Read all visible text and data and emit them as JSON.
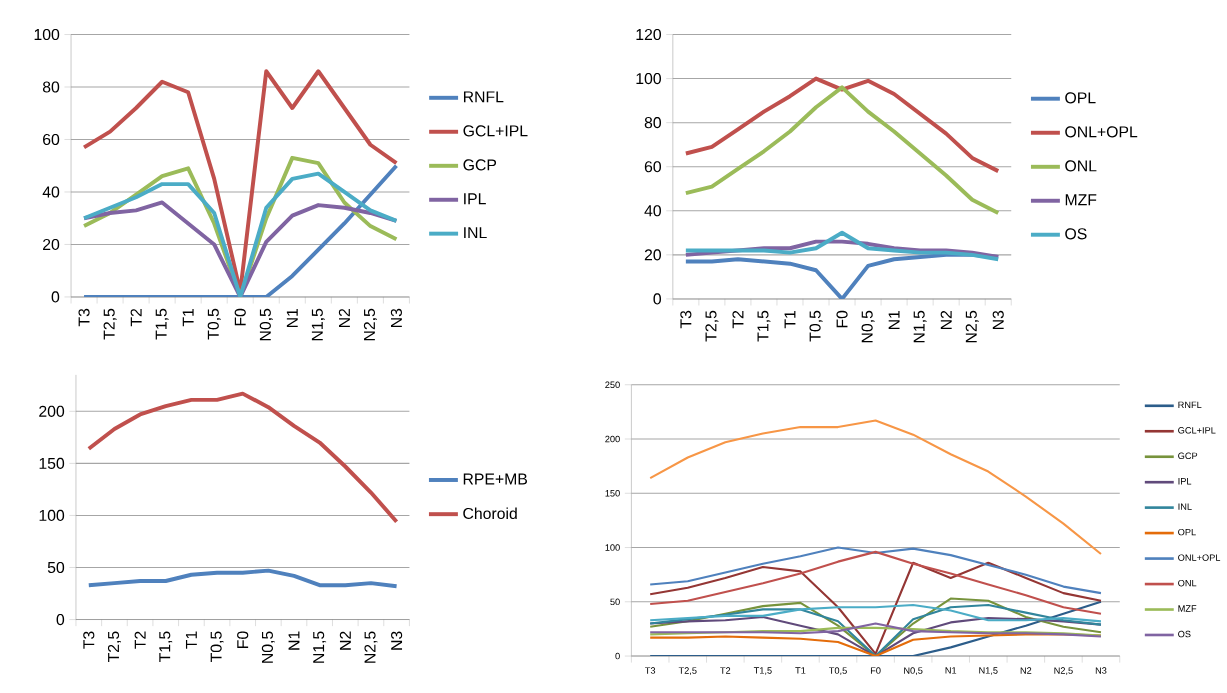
{
  "chart_data": [
    {
      "type": "line",
      "categories": [
        "T3",
        "T2,5",
        "T2",
        "T1,5",
        "T1",
        "T0,5",
        "F0",
        "N0,5",
        "N1",
        "N1,5",
        "N2",
        "N2,5",
        "N3"
      ],
      "ylim": [
        0,
        100
      ],
      "yticks": [
        0,
        20,
        40,
        60,
        80,
        100
      ],
      "grid": "y",
      "legend": "right",
      "line_style": "solid",
      "marker": "none",
      "series": [
        {
          "name": "RNFL",
          "color": "#4f81bd",
          "values": [
            0,
            0,
            0,
            0,
            0,
            0,
            0,
            0,
            8,
            18,
            28,
            39,
            50
          ]
        },
        {
          "name": "GCL+IPL",
          "color": "#c0504d",
          "values": [
            57,
            63,
            72,
            82,
            78,
            45,
            2,
            86,
            72,
            86,
            72,
            58,
            51
          ]
        },
        {
          "name": "GCP",
          "color": "#9bbb59",
          "values": [
            27,
            32,
            39,
            46,
            49,
            28,
            0,
            30,
            53,
            51,
            36,
            27,
            22
          ]
        },
        {
          "name": "IPL",
          "color": "#8064a2",
          "values": [
            30,
            32,
            33,
            36,
            28,
            20,
            0,
            21,
            31,
            35,
            34,
            32,
            29
          ]
        },
        {
          "name": "INL",
          "color": "#4bacc6",
          "values": [
            30,
            34,
            38,
            43,
            43,
            32,
            0,
            34,
            45,
            47,
            40,
            33,
            29
          ]
        }
      ]
    },
    {
      "type": "line",
      "categories": [
        "T3",
        "T2,5",
        "T2",
        "T1,5",
        "T1",
        "T0,5",
        "F0",
        "N0,5",
        "N1",
        "N1,5",
        "N2",
        "N2,5",
        "N3"
      ],
      "ylim": [
        0,
        120
      ],
      "yticks": [
        0,
        20,
        40,
        60,
        80,
        100,
        120
      ],
      "grid": "y",
      "legend": "right",
      "line_style": "solid",
      "marker": "none",
      "series": [
        {
          "name": "OPL",
          "color": "#4f81bd",
          "values": [
            17,
            17,
            18,
            17,
            16,
            13,
            0,
            15,
            18,
            19,
            20,
            20,
            19
          ]
        },
        {
          "name": "ONL+OPL",
          "color": "#c0504d",
          "values": [
            66,
            69,
            77,
            85,
            92,
            100,
            95,
            99,
            93,
            84,
            75,
            64,
            58
          ]
        },
        {
          "name": "ONL",
          "color": "#9bbb59",
          "values": [
            48,
            51,
            59,
            67,
            76,
            87,
            96,
            85,
            76,
            66,
            56,
            45,
            39
          ]
        },
        {
          "name": "MZF",
          "color": "#8064a2",
          "values": [
            20,
            21,
            22,
            23,
            23,
            26,
            26,
            25,
            23,
            22,
            22,
            21,
            19
          ]
        },
        {
          "name": "OS",
          "color": "#4bacc6",
          "values": [
            22,
            22,
            22,
            22,
            21,
            23,
            30,
            23,
            22,
            21,
            21,
            20,
            18
          ]
        }
      ]
    },
    {
      "type": "line",
      "categories": [
        "T3",
        "T2,5",
        "T2",
        "T1,5",
        "T1",
        "T0,5",
        "F0",
        "N0,5",
        "N1",
        "N1,5",
        "N2",
        "N2,5",
        "N3"
      ],
      "ylim": [
        0,
        235
      ],
      "yticks": [
        0,
        50,
        100,
        150,
        200
      ],
      "grid": "y",
      "legend": "right",
      "line_style": "solid",
      "marker": "none",
      "series": [
        {
          "name": "RPE+MB",
          "color": "#4f81bd",
          "values": [
            33,
            35,
            37,
            37,
            43,
            45,
            45,
            47,
            42,
            33,
            33,
            35,
            32
          ]
        },
        {
          "name": "Choroid",
          "color": "#c0504d",
          "values": [
            164,
            183,
            197,
            205,
            211,
            211,
            217,
            204,
            186,
            170,
            147,
            122,
            94
          ]
        }
      ]
    },
    {
      "type": "line",
      "categories": [
        "T3",
        "T2,5",
        "T2",
        "T1,5",
        "T1",
        "T0,5",
        "F0",
        "N0,5",
        "N1",
        "N1,5",
        "N2",
        "N2,5",
        "N3"
      ],
      "ylim": [
        0,
        250
      ],
      "yticks": [
        0,
        50,
        100,
        150,
        200,
        250
      ],
      "grid": "y",
      "legend": "right",
      "line_style": "solid",
      "marker": "none",
      "series": [
        {
          "name": "RNFL",
          "color": "#2c5d8a",
          "values": [
            0,
            0,
            0,
            0,
            0,
            0,
            0,
            0,
            8,
            18,
            28,
            39,
            50
          ]
        },
        {
          "name": "GCL+IPL",
          "color": "#943634",
          "values": [
            57,
            63,
            72,
            82,
            78,
            45,
            2,
            86,
            72,
            86,
            72,
            58,
            51
          ]
        },
        {
          "name": "GCP",
          "color": "#77933c",
          "values": [
            27,
            32,
            39,
            46,
            49,
            28,
            0,
            30,
            53,
            51,
            36,
            27,
            22
          ]
        },
        {
          "name": "IPL",
          "color": "#604a7b",
          "values": [
            30,
            32,
            33,
            36,
            28,
            20,
            0,
            21,
            31,
            35,
            34,
            32,
            29
          ]
        },
        {
          "name": "INL",
          "color": "#31859c",
          "values": [
            30,
            34,
            38,
            43,
            43,
            32,
            0,
            34,
            45,
            47,
            40,
            33,
            29
          ]
        },
        {
          "name": "OPL",
          "color": "#e46c0a",
          "values": [
            17,
            17,
            18,
            17,
            16,
            13,
            0,
            15,
            18,
            19,
            20,
            20,
            19
          ]
        },
        {
          "name": "ONL+OPL",
          "color": "#4f81bd",
          "values": [
            66,
            69,
            77,
            85,
            92,
            100,
            95,
            99,
            93,
            84,
            75,
            64,
            58
          ]
        },
        {
          "name": "ONL",
          "color": "#c0504d",
          "values": [
            48,
            51,
            59,
            67,
            76,
            87,
            96,
            85,
            76,
            66,
            56,
            45,
            39
          ]
        },
        {
          "name": "MZF",
          "color": "#9bbb59",
          "values": [
            20,
            21,
            22,
            23,
            23,
            26,
            26,
            25,
            23,
            22,
            22,
            21,
            19
          ]
        },
        {
          "name": "OS",
          "color": "#8064a2",
          "values": [
            22,
            22,
            22,
            22,
            21,
            23,
            30,
            23,
            22,
            21,
            21,
            20,
            18
          ]
        },
        {
          "color": "#4bacc6",
          "values": [
            33,
            35,
            37,
            37,
            43,
            45,
            45,
            47,
            42,
            33,
            33,
            35,
            32
          ]
        },
        {
          "color": "#f79646",
          "values": [
            164,
            183,
            197,
            205,
            211,
            211,
            217,
            204,
            186,
            170,
            147,
            122,
            94
          ]
        }
      ]
    }
  ]
}
